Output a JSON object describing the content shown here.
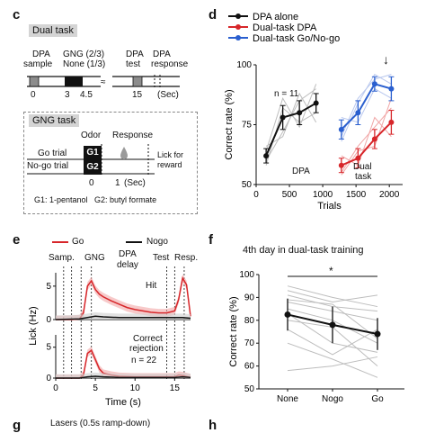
{
  "panels": {
    "c": {
      "label": "c",
      "dual_task_title": "Dual task",
      "dpa_sample": [
        "DPA",
        "sample"
      ],
      "gng_top": [
        "GNG (2/3)",
        "None (1/3)"
      ],
      "dpa_test": [
        "DPA",
        "test"
      ],
      "dpa_response": [
        "DPA",
        "response"
      ],
      "timeline_ticks": [
        "0",
        "3",
        "4.5",
        "15"
      ],
      "timeline_unit": "(Sec)",
      "gng_task_title": "GNG task",
      "odor": "Odor",
      "response": "Response",
      "go_trial": "Go trial",
      "nogo_trial": "No-go trial",
      "g1": "G1",
      "g2": "G2",
      "lick_for_reward": [
        "Lick for",
        "reward"
      ],
      "gng_ticks": [
        "0",
        "1"
      ],
      "gng_unit": "(Sec)",
      "legend_text": "G1: 1-pentanol   G2: butyl formate"
    },
    "d": {
      "label": "d",
      "n_label": "n = 11",
      "dpa_label": "DPA",
      "dual_label": [
        "Dual",
        "task"
      ],
      "arrow": "↓"
    },
    "e": {
      "label": "e",
      "legend_go": "Go",
      "legend_nogo": "Nogo",
      "events": [
        "Samp.",
        "GNG",
        "DPA",
        "delay",
        "Test",
        "Resp."
      ],
      "hit": "Hit",
      "correct_rejection": [
        "Correct",
        "rejection"
      ],
      "n_label": "n = 22"
    },
    "f": {
      "label": "f",
      "title": "4th day in dual-task training",
      "sig": "*"
    },
    "g": {
      "label": "g",
      "fragment": "Lasers (0.5s ramp-down)"
    },
    "h": {
      "label": "h"
    }
  },
  "colors": {
    "black": "#111111",
    "red": "#d7262a",
    "blue": "#2a5fcf",
    "gray": "#bdbdbd",
    "pink": "#f1a6a6",
    "lightblue": "#b8c7ee"
  },
  "chart_data": [
    {
      "type": "line",
      "panel": "d",
      "xlabel": "Trials",
      "ylabel": "Correct rate (%)",
      "xlim": [
        0,
        2200
      ],
      "ylim": [
        50,
        100
      ],
      "xticks": [
        0,
        500,
        1000,
        1500,
        2000
      ],
      "yticks": [
        50,
        75,
        100
      ],
      "legend": "top-right",
      "series": [
        {
          "name": "DPA alone",
          "color": "#111111",
          "x": [
            150,
            400,
            650,
            900
          ],
          "y": [
            62,
            78,
            80,
            84
          ],
          "err": [
            3,
            5,
            5,
            4
          ]
        },
        {
          "name": "Dual-task DPA",
          "color": "#d7262a",
          "x": [
            1280,
            1530,
            1780,
            2030
          ],
          "y": [
            58,
            61,
            69,
            76
          ],
          "err": [
            3,
            4,
            4,
            5
          ]
        },
        {
          "name": "Dual-task Go/No-go",
          "color": "#2a5fcf",
          "x": [
            1280,
            1530,
            1780,
            2030
          ],
          "y": [
            73,
            80,
            92,
            90
          ],
          "err": [
            4,
            5,
            3,
            5
          ]
        }
      ]
    },
    {
      "type": "line",
      "panel": "e",
      "xlabel": "Time (s)",
      "ylabel": "Lick (Hz)",
      "xlim": [
        0,
        17
      ],
      "ylim": [
        0,
        7
      ],
      "xticks": [
        0,
        5,
        10,
        15
      ],
      "yticks": [
        0,
        5
      ],
      "subplots": [
        {
          "label": "Hit",
          "series": [
            {
              "name": "Go",
              "color": "#d7262a",
              "x": [
                0,
                1,
                2,
                3,
                3.5,
                4,
                4.5,
                5,
                5.5,
                6,
                7,
                8,
                9,
                10,
                11,
                12,
                13,
                14,
                15,
                15.5,
                16,
                16.5,
                17
              ],
              "y": [
                0,
                0,
                0,
                0.1,
                1,
                5,
                5.8,
                4.5,
                3.8,
                3.4,
                2.8,
                2.3,
                1.8,
                1.5,
                1.3,
                1.1,
                1,
                1,
                1.3,
                3,
                6.2,
                5.2,
                0.5
              ]
            },
            {
              "name": "Nogo",
              "color": "#111111",
              "x": [
                0,
                3,
                4,
                5,
                6,
                8,
                10,
                12,
                14,
                15,
                16,
                17
              ],
              "y": [
                0,
                0.1,
                0.3,
                0.5,
                0.4,
                0.3,
                0.3,
                0.3,
                0.3,
                0.3,
                0.3,
                0.2
              ]
            }
          ]
        },
        {
          "label": "Correct rejection",
          "series": [
            {
              "name": "Go",
              "color": "#d7262a",
              "x": [
                0,
                3,
                3.5,
                4,
                4.5,
                5,
                5.5,
                6,
                7,
                8,
                10,
                12,
                14,
                15,
                15.5,
                16,
                17
              ],
              "y": [
                0,
                0,
                0.5,
                4,
                4.5,
                3,
                1.5,
                0.8,
                0.5,
                0.3,
                0.2,
                0.2,
                0.2,
                0.2,
                0.5,
                0.4,
                0.1
              ]
            },
            {
              "name": "Nogo",
              "color": "#111111",
              "x": [
                0,
                3,
                4,
                5,
                6,
                8,
                10,
                12,
                14,
                15,
                16,
                17
              ],
              "y": [
                0,
                0,
                0.2,
                0.3,
                0.2,
                0.1,
                0.1,
                0.1,
                0.1,
                0.1,
                0.2,
                0.1
              ]
            }
          ]
        }
      ]
    },
    {
      "type": "line",
      "panel": "f",
      "ylabel": "Correct rate (%)",
      "categories": [
        "None",
        "Nogo",
        "Go"
      ],
      "ylim": [
        50,
        100
      ],
      "yticks": [
        50,
        60,
        70,
        80,
        90,
        100
      ],
      "series": [
        {
          "name": "Mean",
          "color": "#111111",
          "values": [
            82.5,
            78,
            74
          ],
          "err": [
            7,
            8,
            7
          ]
        }
      ],
      "individual": [
        [
          95,
          90,
          86
        ],
        [
          93,
          88,
          91
        ],
        [
          91,
          86,
          84
        ],
        [
          89,
          87,
          72
        ],
        [
          88,
          84,
          80
        ],
        [
          85,
          80,
          70
        ],
        [
          83,
          70,
          66
        ],
        [
          80,
          77,
          60
        ],
        [
          76,
          65,
          76
        ],
        [
          70,
          63,
          55
        ],
        [
          58,
          60,
          64
        ]
      ]
    }
  ]
}
